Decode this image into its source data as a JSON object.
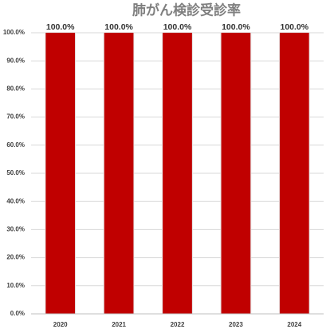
{
  "chart_data": {
    "type": "bar",
    "title": "肺がん検診受診率",
    "categories": [
      "2020",
      "2021",
      "2022",
      "2023",
      "2024"
    ],
    "values": [
      100,
      100,
      100,
      100,
      100
    ],
    "value_labels": [
      "100.0%",
      "100.0%",
      "100.0%",
      "100.0%",
      "100.0%"
    ],
    "color": "#c00000",
    "ylim": [
      0,
      100
    ],
    "yticks": [
      {
        "value": 0,
        "label": "0.0%"
      },
      {
        "value": 10,
        "label": "10.0%"
      },
      {
        "value": 20,
        "label": "20.0%"
      },
      {
        "value": 30,
        "label": "30.0%"
      },
      {
        "value": 40,
        "label": "40.0%"
      },
      {
        "value": 50,
        "label": "50.0%"
      },
      {
        "value": 60,
        "label": "60.0%"
      },
      {
        "value": 70,
        "label": "70.0%"
      },
      {
        "value": 80,
        "label": "80.0%"
      },
      {
        "value": 90,
        "label": "90.0%"
      },
      {
        "value": 100,
        "label": "100.0%"
      }
    ],
    "grid": true
  }
}
